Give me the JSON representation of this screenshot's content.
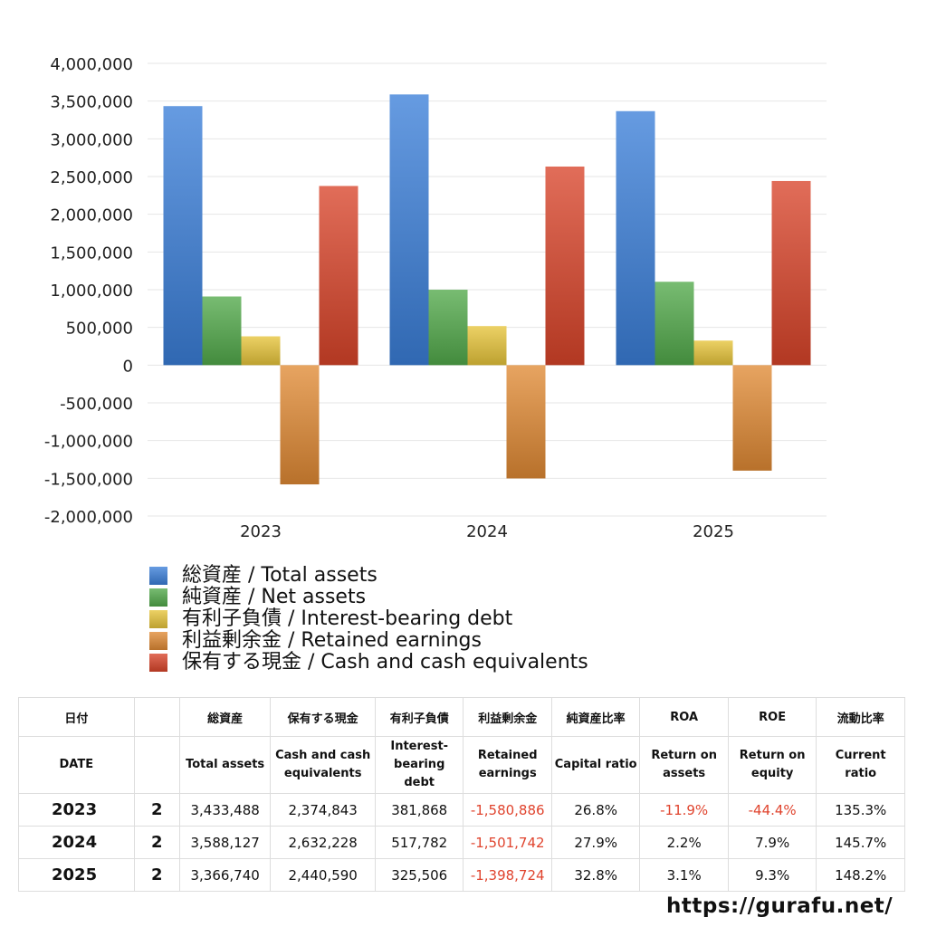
{
  "chart_data": {
    "type": "bar",
    "categories": [
      "2023",
      "2024",
      "2025"
    ],
    "ylim": [
      -2000000,
      4000000
    ],
    "yticks": [
      4000000,
      3500000,
      3000000,
      2500000,
      2000000,
      1500000,
      1000000,
      500000,
      0,
      -500000,
      -1000000,
      -1500000,
      -2000000
    ],
    "ytick_labels": [
      "4,000,000",
      "3,500,000",
      "3,000,000",
      "2,500,000",
      "2,000,000",
      "1,500,000",
      "1,000,000",
      "500,000",
      "0",
      "-500,000",
      "-1,000,000",
      "-1,500,000",
      "-2,000,000"
    ],
    "grid": true,
    "legend_position": "bottom",
    "series": [
      {
        "name": "総資産 / Total assets",
        "color": "#3b7fd9",
        "values": [
          3433488,
          3588127,
          3366740
        ]
      },
      {
        "name": "純資産 / Net assets",
        "color": "#52a94a",
        "values": [
          910000,
          1000000,
          1105000
        ]
      },
      {
        "name": "有利子負債 / Interest-bearing debt",
        "color": "#e6c43a",
        "values": [
          381868,
          517782,
          325506
        ]
      },
      {
        "name": "利益剰余金 / Retained earnings",
        "color": "#e08a35",
        "values": [
          -1580886,
          -1501742,
          -1398724
        ]
      },
      {
        "name": "保有する現金 /  Cash and cash equivalents",
        "color": "#d9442a",
        "values": [
          2374843,
          2632228,
          2440590
        ]
      }
    ]
  },
  "table": {
    "header_jp": [
      "日付",
      "",
      "総資産",
      "保有する現金",
      "有利子負債",
      "利益剰余金",
      "純資産比率",
      "ROA",
      "ROE",
      "流動比率"
    ],
    "header_en": [
      [
        "DATE"
      ],
      [
        ""
      ],
      [
        "Total assets"
      ],
      [
        "Cash and cash",
        "equivalents"
      ],
      [
        "Interest-",
        "bearing",
        "debt"
      ],
      [
        "Retained",
        "earnings"
      ],
      [
        "Capital ratio"
      ],
      [
        "Return on",
        "assets"
      ],
      [
        "Return on",
        "equity"
      ],
      [
        "Current",
        "ratio"
      ]
    ],
    "rows": [
      {
        "year": "2023",
        "count": "2",
        "total_assets": "3,433,488",
        "cash": "2,374,843",
        "debt": "381,868",
        "retained": "-1,580,886",
        "capital_ratio": "26.8%",
        "roa": "-11.9%",
        "roe": "-44.4%",
        "current_ratio": "135.3%"
      },
      {
        "year": "2024",
        "count": "2",
        "total_assets": "3,588,127",
        "cash": "2,632,228",
        "debt": "517,782",
        "retained": "-1,501,742",
        "capital_ratio": "27.9%",
        "roa": "2.2%",
        "roe": "7.9%",
        "current_ratio": "145.7%"
      },
      {
        "year": "2025",
        "count": "2",
        "total_assets": "3,366,740",
        "cash": "2,440,590",
        "debt": "325,506",
        "retained": "-1,398,724",
        "capital_ratio": "32.8%",
        "roa": "3.1%",
        "roe": "9.3%",
        "current_ratio": "148.2%"
      }
    ]
  },
  "footer": {
    "site": "https://gurafu.net/"
  }
}
